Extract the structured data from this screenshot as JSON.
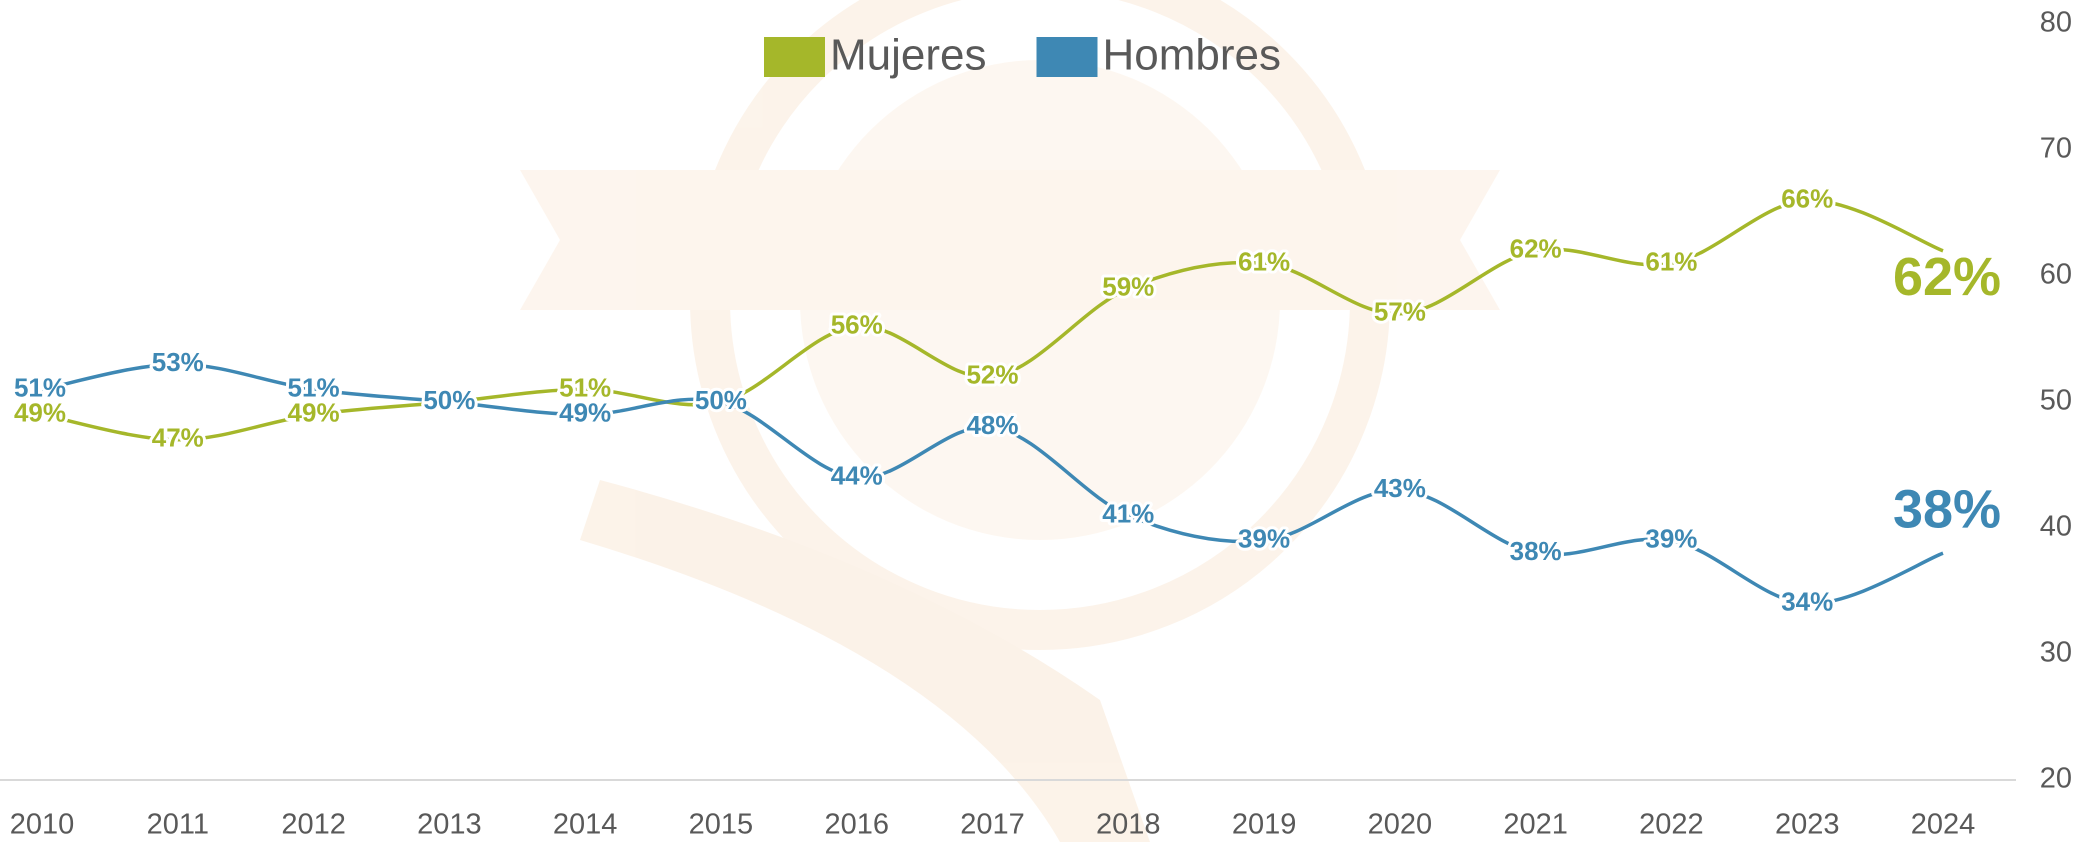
{
  "chart_data": {
    "type": "line",
    "categories": [
      "2010",
      "2011",
      "2012",
      "2013",
      "2014",
      "2015",
      "2016",
      "2017",
      "2018",
      "2019",
      "2020",
      "2021",
      "2022",
      "2023",
      "2024"
    ],
    "series": [
      {
        "name": "Mujeres",
        "color": "#a5b72a",
        "values": [
          49,
          47,
          49,
          50,
          51,
          50,
          56,
          52,
          59,
          61,
          57,
          62,
          61,
          66,
          62
        ],
        "value_labels": [
          "49%",
          "47%",
          "49%",
          null,
          "51%",
          null,
          "56%",
          "52%",
          "59%",
          "61%",
          "57%",
          "62%",
          "61%",
          "66%",
          "62%"
        ]
      },
      {
        "name": "Hombres",
        "color": "#3e88b4",
        "values": [
          51,
          53,
          51,
          50,
          49,
          50,
          44,
          48,
          41,
          39,
          43,
          38,
          39,
          34,
          38
        ],
        "value_labels": [
          "51%",
          "53%",
          "51%",
          "50%",
          "49%",
          "50%",
          "44%",
          "48%",
          "41%",
          "39%",
          "43%",
          "38%",
          "39%",
          "34%",
          "38%"
        ]
      }
    ],
    "ylim": [
      20,
      80
    ],
    "yticks": [
      20,
      30,
      40,
      50,
      60,
      70,
      80
    ],
    "y_axis_side": "right",
    "legend": "top"
  }
}
